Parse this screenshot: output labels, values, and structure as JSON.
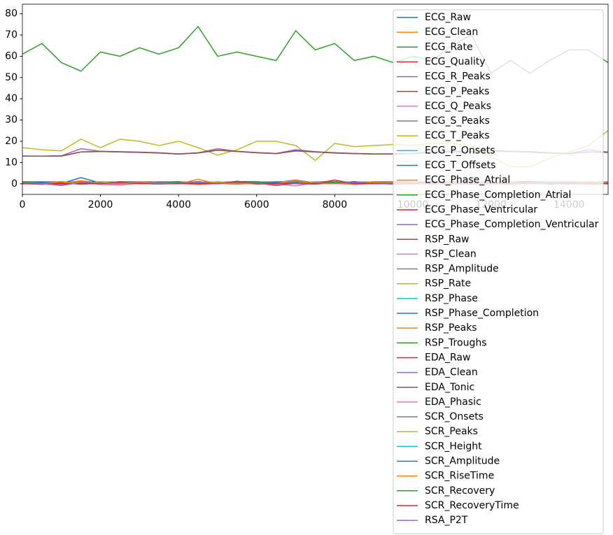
{
  "chart_data": {
    "type": "line",
    "x": [
      0,
      500,
      1000,
      1500,
      2000,
      2500,
      3000,
      3500,
      4000,
      4500,
      5000,
      5500,
      6000,
      6500,
      7000,
      7500,
      8000,
      8500,
      9000,
      9500,
      10000,
      10500,
      11000,
      11500,
      12000,
      12500,
      13000,
      13500,
      14000,
      14500,
      15000
    ],
    "xlim": [
      0,
      15000
    ],
    "xticks": [
      0,
      2000,
      4000,
      6000,
      8000,
      10000,
      12000,
      14000
    ],
    "ylim": [
      -5,
      84.5
    ],
    "yticks": [
      0,
      10,
      20,
      30,
      40,
      50,
      60,
      70,
      80
    ],
    "grid": false,
    "legend": "upper right",
    "series": [
      {
        "name": "ECG_Raw",
        "color": "#1f77b4",
        "values": [
          0.3,
          0.5,
          0.2,
          2.9,
          0.4,
          0.3,
          0.6,
          0.2,
          0.5,
          0.3,
          0.4,
          0.6,
          0.2,
          0.5,
          1.8,
          0.3,
          0.4,
          0.2,
          0.6,
          0.3,
          0.5,
          0.2,
          0.4,
          0.3,
          0.6,
          0.2,
          0.4,
          0.5,
          0.3,
          0.6,
          0.2
        ]
      },
      {
        "name": "ECG_Clean",
        "color": "#ff7f0e",
        "values": [
          0.2,
          0.4,
          0.1,
          1.5,
          0.3,
          0.2,
          0.5,
          0.1,
          0.4,
          0.2,
          0.3,
          0.5,
          0.1,
          0.4,
          1.2,
          0.2,
          0.3,
          0.1,
          0.5,
          0.2,
          0.4,
          0.1,
          0.3,
          0.2,
          0.5,
          0.1,
          0.3,
          0.4,
          0.2,
          0.5,
          0.1
        ]
      },
      {
        "name": "ECG_Rate",
        "color": "#2ca02c",
        "values": [
          61,
          66,
          57,
          53,
          62,
          60,
          64,
          61,
          64,
          74,
          60,
          62,
          60,
          58,
          72,
          63,
          66,
          58,
          60,
          57,
          60,
          58,
          65,
          70,
          52,
          58,
          52,
          58,
          63,
          63,
          57
        ]
      },
      {
        "name": "ECG_Quality",
        "color": "#d62728",
        "values": [
          0.9,
          0.8,
          0.9,
          0.7,
          0.9,
          0.8,
          0.9,
          0.9,
          0.8,
          0.9,
          0.7,
          0.9,
          0.8,
          0.9,
          0.9,
          0.8,
          0.9,
          0.7,
          0.9,
          0.8,
          0.9,
          0.9,
          0.8,
          0.9,
          0.7,
          0.9,
          0.8,
          0.9,
          0.9,
          0.8,
          0.9
        ]
      },
      {
        "name": "ECG_R_Peaks",
        "color": "#9467bd",
        "values": [
          0,
          1,
          0,
          0,
          1,
          0,
          1,
          0,
          0,
          1,
          0,
          1,
          0,
          0,
          1,
          0,
          1,
          0,
          0,
          1,
          0,
          1,
          0,
          0,
          1,
          0,
          1,
          0,
          0,
          1,
          0
        ]
      },
      {
        "name": "ECG_P_Peaks",
        "color": "#8c564b",
        "values": [
          1,
          0,
          1,
          0,
          0,
          1,
          0,
          1,
          0,
          0,
          1,
          0,
          1,
          0,
          0,
          1,
          0,
          1,
          0,
          0,
          1,
          0,
          1,
          0,
          0,
          1,
          0,
          1,
          0,
          0,
          1
        ]
      },
      {
        "name": "ECG_Q_Peaks",
        "color": "#e377c2",
        "values": [
          0,
          0,
          1,
          0,
          1,
          0,
          0,
          1,
          0,
          1,
          0,
          0,
          1,
          0,
          1,
          0,
          0,
          1,
          0,
          1,
          0,
          0,
          1,
          0,
          1,
          0,
          0,
          1,
          0,
          1,
          0
        ]
      },
      {
        "name": "ECG_S_Peaks",
        "color": "#7f7f7f",
        "values": [
          0,
          1,
          0,
          0,
          1,
          0,
          1,
          0,
          0,
          1,
          0,
          1,
          0,
          0,
          1,
          0,
          1,
          0,
          0,
          1,
          0,
          1,
          0,
          0,
          1,
          0,
          1,
          0,
          0,
          1,
          0
        ]
      },
      {
        "name": "ECG_T_Peaks",
        "color": "#bcbd22",
        "values": [
          1,
          0,
          1,
          0,
          0,
          1,
          0,
          1,
          0,
          0,
          1,
          0,
          1,
          0,
          0,
          1,
          0,
          1,
          0,
          0,
          1,
          0,
          1,
          0,
          0,
          1,
          0,
          1,
          0,
          0,
          1
        ]
      },
      {
        "name": "ECG_P_Onsets",
        "color": "#17becf",
        "values": [
          0,
          0,
          1,
          0,
          1,
          0,
          0,
          1,
          0,
          1,
          0,
          0,
          1,
          0,
          1,
          0,
          0,
          1,
          0,
          1,
          0,
          0,
          1,
          0,
          1,
          0,
          0,
          1,
          0,
          1,
          0
        ]
      },
      {
        "name": "ECG_T_Offsets",
        "color": "#1f77b4",
        "values": [
          0,
          1,
          0,
          0,
          1,
          0,
          1,
          0,
          0,
          1,
          0,
          1,
          0,
          0,
          1,
          0,
          1,
          0,
          0,
          1,
          0,
          1,
          0,
          0,
          1,
          0,
          1,
          0,
          0,
          1,
          0
        ]
      },
      {
        "name": "ECG_Phase_Atrial",
        "color": "#ff7f0e",
        "values": [
          0,
          1,
          1,
          0,
          1,
          0,
          0,
          1,
          1,
          0,
          1,
          0,
          0,
          1,
          0,
          1,
          1,
          0,
          1,
          0,
          0,
          1,
          1,
          0,
          1,
          0,
          0,
          1,
          0,
          1,
          0
        ]
      },
      {
        "name": "ECG_Phase_Completion_Atrial",
        "color": "#2ca02c",
        "values": [
          0.5,
          0.2,
          0.8,
          0.4,
          0.6,
          0.1,
          0.9,
          0.3,
          0.7,
          0.5,
          0.2,
          0.8,
          0.4,
          0.6,
          0.1,
          0.9,
          0.3,
          0.7,
          0.5,
          0.2,
          0.8,
          0.4,
          0.6,
          0.1,
          0.9,
          0.3,
          0.7,
          0.5,
          0.2,
          0.8,
          0.4
        ]
      },
      {
        "name": "ECG_Phase_Ventricular",
        "color": "#d62728",
        "values": [
          1,
          0,
          0,
          1,
          0,
          1,
          1,
          0,
          0,
          1,
          0,
          1,
          1,
          0,
          1,
          0,
          0,
          1,
          0,
          1,
          1,
          0,
          0,
          1,
          0,
          1,
          1,
          0,
          1,
          0,
          1
        ]
      },
      {
        "name": "ECG_Phase_Completion_Ventricular",
        "color": "#9467bd",
        "values": [
          0.4,
          0.7,
          0.3,
          0.9,
          0.1,
          0.6,
          0.4,
          0.8,
          0.2,
          0.4,
          0.7,
          0.3,
          0.9,
          0.1,
          0.6,
          0.4,
          0.8,
          0.2,
          0.4,
          0.7,
          0.3,
          0.9,
          0.1,
          0.6,
          0.4,
          0.8,
          0.2,
          0.4,
          0.7,
          0.3,
          0.9
        ]
      },
      {
        "name": "RSP_Raw",
        "color": "#8c564b",
        "values": [
          0.2,
          -0.3,
          0.4,
          -0.2,
          0.3,
          -0.4,
          0.2,
          -0.1,
          0.4,
          -0.3,
          0.2,
          -0.2,
          0.3,
          -0.4,
          0.1,
          -0.2,
          0.3,
          -0.3,
          0.4,
          -0.1,
          0.2,
          -0.3,
          0.3,
          -0.2,
          0.4,
          -0.3,
          0.2,
          -0.1,
          0.3,
          -0.2,
          0.1
        ]
      },
      {
        "name": "RSP_Clean",
        "color": "#e377c2",
        "values": [
          0.1,
          -0.2,
          0.3,
          -0.1,
          0.2,
          -0.3,
          0.1,
          -0.1,
          0.3,
          -0.2,
          0.1,
          -0.1,
          0.2,
          -0.3,
          0.1,
          -0.1,
          0.2,
          -0.2,
          0.3,
          -0.1,
          0.1,
          -0.2,
          0.2,
          -0.1,
          0.3,
          -0.2,
          0.1,
          -0.1,
          0.2,
          -0.1,
          0.1
        ]
      },
      {
        "name": "RSP_Amplitude",
        "color": "#7f7f7f",
        "values": [
          0.6,
          0.6,
          0.7,
          0.7,
          0.6,
          0.5,
          0.6,
          0.7,
          0.6,
          0.6,
          0.5,
          0.6,
          0.7,
          0.6,
          0.6,
          0.5,
          0.6,
          0.6,
          0.7,
          0.6,
          0.6,
          0.5,
          0.6,
          0.7,
          0.6,
          0.6,
          0.5,
          0.6,
          0.6,
          0.7,
          0.6
        ]
      },
      {
        "name": "RSP_Rate",
        "color": "#bcbd22",
        "values": [
          17,
          16,
          15.5,
          21,
          17,
          21,
          20,
          18,
          20,
          17,
          13.5,
          16,
          20,
          20,
          18,
          11,
          19,
          17.5,
          18,
          18.5,
          18,
          19,
          19,
          18,
          13,
          8,
          8,
          12,
          15,
          18,
          25
        ]
      },
      {
        "name": "RSP_Phase",
        "color": "#17becf",
        "values": [
          1,
          1,
          0,
          1,
          0,
          1,
          1,
          0,
          1,
          0,
          0,
          1,
          0,
          1,
          1,
          0,
          1,
          0,
          1,
          1,
          0,
          1,
          0,
          0,
          1,
          0,
          1,
          1,
          0,
          1,
          0
        ]
      },
      {
        "name": "RSP_Phase_Completion",
        "color": "#1f77b4",
        "values": [
          0.3,
          0.7,
          0.5,
          0.2,
          0.8,
          0.4,
          0.6,
          0.1,
          0.9,
          0.3,
          0.7,
          0.5,
          0.2,
          0.8,
          0.4,
          0.6,
          0.1,
          0.9,
          0.3,
          0.7,
          0.5,
          0.2,
          0.8,
          0.4,
          0.6,
          0.1,
          0.9,
          0.3,
          0.7,
          0.5,
          0.2
        ]
      },
      {
        "name": "RSP_Peaks",
        "color": "#ff7f0e",
        "values": [
          0,
          0,
          1,
          0,
          0,
          0,
          1,
          0,
          0,
          0,
          1,
          0,
          0,
          0,
          1,
          0,
          0,
          0,
          1,
          0,
          0,
          0,
          1,
          0,
          0,
          0,
          1,
          0,
          0,
          0,
          1
        ]
      },
      {
        "name": "RSP_Troughs",
        "color": "#2ca02c",
        "values": [
          1,
          0,
          0,
          0,
          1,
          0,
          0,
          0,
          1,
          0,
          0,
          0,
          1,
          0,
          0,
          0,
          1,
          0,
          0,
          0,
          1,
          0,
          0,
          0,
          1,
          0,
          0,
          0,
          1,
          0,
          0
        ]
      },
      {
        "name": "EDA_Raw",
        "color": "#d62728",
        "values": [
          13,
          13,
          13.1,
          15,
          15.2,
          15,
          14.8,
          14.5,
          14,
          14.5,
          15.8,
          15.2,
          14.6,
          14.2,
          15.5,
          15,
          14.5,
          14.2,
          14,
          14,
          14.2,
          15,
          15,
          15,
          15.5,
          15.2,
          15,
          14.5,
          14.2,
          15,
          14.8
        ]
      },
      {
        "name": "EDA_Clean",
        "color": "#9467bd",
        "values": [
          13.1,
          13,
          13.2,
          16.5,
          15.3,
          15.1,
          14.9,
          14.6,
          14.1,
          14.6,
          16.5,
          15.3,
          14.7,
          14.3,
          16,
          15.1,
          14.6,
          14.3,
          14.1,
          14.1,
          14.3,
          15.1,
          15.2,
          15.1,
          15.7,
          15.3,
          15.1,
          14.6,
          14.3,
          16,
          14.9
        ]
      },
      {
        "name": "EDA_Tonic",
        "color": "#8c564b",
        "values": [
          13,
          13,
          13,
          15,
          15.2,
          15,
          14.8,
          14.5,
          14,
          14.5,
          15.8,
          15.2,
          14.6,
          14.2,
          15.5,
          15,
          14.5,
          14.2,
          14,
          14,
          14.2,
          15,
          15,
          15,
          15.5,
          15.2,
          15,
          14.5,
          14.2,
          15,
          14.8
        ]
      },
      {
        "name": "EDA_Phasic",
        "color": "#e377c2",
        "values": [
          0,
          -0.2,
          -0.5,
          0.8,
          -0.3,
          -0.6,
          0.2,
          -0.1,
          0.1,
          -0.2,
          0.7,
          0.3,
          -0.2,
          -0.1,
          -1.0,
          0.5,
          0.1,
          -0.3,
          0.2,
          -0.1,
          0.1,
          0.3,
          -0.2,
          0.1,
          0.4,
          -0.1,
          0.2,
          0.3,
          -0.2,
          0.5,
          0.1
        ]
      },
      {
        "name": "SCR_Onsets",
        "color": "#7f7f7f",
        "values": [
          0,
          0,
          0,
          1,
          0,
          0,
          0,
          0,
          0,
          1,
          0,
          0,
          0,
          0,
          1,
          0,
          0,
          0,
          0,
          1,
          0,
          0,
          0,
          0,
          1,
          0,
          0,
          0,
          0,
          1,
          0
        ]
      },
      {
        "name": "SCR_Peaks",
        "color": "#bcbd22",
        "values": [
          0,
          0,
          0,
          0,
          1,
          0,
          0,
          0,
          0,
          0,
          1,
          0,
          0,
          0,
          0,
          1,
          0,
          0,
          0,
          0,
          1,
          0,
          0,
          0,
          0,
          1,
          0,
          0,
          0,
          0,
          1
        ]
      },
      {
        "name": "SCR_Height",
        "color": "#17becf",
        "values": [
          0,
          0,
          0,
          0.3,
          0,
          0,
          0,
          0,
          0,
          0.5,
          0,
          0,
          0,
          0,
          0.4,
          0,
          0,
          0,
          0,
          0.2,
          0,
          0,
          0,
          0,
          0.6,
          0,
          0,
          0,
          0,
          0.3,
          0
        ]
      },
      {
        "name": "SCR_Amplitude",
        "color": "#1f77b4",
        "values": [
          0,
          0,
          0,
          0.4,
          0,
          0,
          0,
          0,
          0,
          0.6,
          0,
          0,
          0,
          0,
          0.5,
          0,
          0,
          0,
          0,
          0.3,
          0,
          0,
          0,
          0,
          0.7,
          0,
          0,
          0,
          0,
          0.4,
          0
        ]
      },
      {
        "name": "SCR_RiseTime",
        "color": "#ff7f0e",
        "values": [
          0,
          0,
          0,
          0.8,
          0,
          0,
          0,
          0,
          0,
          2.1,
          0,
          0,
          0,
          0,
          1.6,
          0,
          0,
          0,
          0,
          0.9,
          0,
          0,
          0,
          0,
          1.2,
          0,
          0,
          0,
          0,
          0.8,
          0
        ]
      },
      {
        "name": "SCR_Recovery",
        "color": "#2ca02c",
        "values": [
          0,
          0,
          0,
          0,
          0,
          1,
          0,
          0,
          0,
          0,
          0,
          1,
          0,
          0,
          0,
          0,
          1,
          0,
          0,
          0,
          0,
          1,
          0,
          0,
          0,
          0,
          1,
          0,
          0,
          0,
          0
        ]
      },
      {
        "name": "SCR_RecoveryTime",
        "color": "#d62728",
        "values": [
          0,
          0,
          0,
          0,
          0,
          0.7,
          0,
          0,
          0,
          0,
          0,
          1.2,
          0,
          0,
          0,
          0,
          1.8,
          0,
          0,
          0,
          0,
          0.9,
          0,
          0,
          0,
          0,
          1.1,
          0,
          0,
          0,
          0
        ]
      },
      {
        "name": "RSA_P2T",
        "color": "#9467bd",
        "values": [
          0.5,
          0.2,
          -0.8,
          0.6,
          0.4,
          0.3,
          0.5,
          0.2,
          0.4,
          0.6,
          0.3,
          0.5,
          0.4,
          -0.9,
          0.2,
          0.5,
          0.3,
          0.6,
          0.4,
          0.2,
          0.5,
          0.3,
          0.4,
          0.6,
          0.3,
          0.5,
          0.2,
          0.4,
          0.6,
          0.3,
          0.5
        ]
      }
    ]
  }
}
